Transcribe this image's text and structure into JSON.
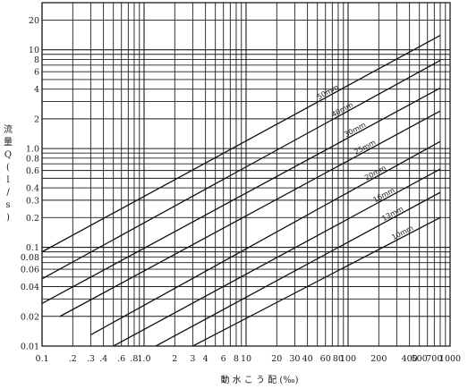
{
  "chart_data": {
    "type": "line",
    "x_scale": "log",
    "y_scale": "log",
    "xlim": [
      0.1,
      1000
    ],
    "ylim": [
      0.01,
      30
    ],
    "grid": true,
    "xlabel": "動 水 こ う 配 (‰)",
    "ylabel_chars": [
      "流",
      "量",
      "Q",
      "(",
      "l",
      "/",
      "s",
      ")"
    ],
    "x_ticks": [
      {
        "v": 0.1,
        "t": "0.1"
      },
      {
        "v": 0.2,
        "t": ".2"
      },
      {
        "v": 0.3,
        "t": ".3"
      },
      {
        "v": 0.4,
        "t": ".4"
      },
      {
        "v": 0.6,
        "t": ".6"
      },
      {
        "v": 0.8,
        "t": ".8"
      },
      {
        "v": 1,
        "t": "1.0"
      },
      {
        "v": 2,
        "t": "2"
      },
      {
        "v": 3,
        "t": "3"
      },
      {
        "v": 4,
        "t": "4"
      },
      {
        "v": 6,
        "t": "6"
      },
      {
        "v": 8,
        "t": "8"
      },
      {
        "v": 10,
        "t": "10"
      },
      {
        "v": 20,
        "t": "20"
      },
      {
        "v": 30,
        "t": "30"
      },
      {
        "v": 40,
        "t": "40"
      },
      {
        "v": 60,
        "t": "60"
      },
      {
        "v": 80,
        "t": "80"
      },
      {
        "v": 100,
        "t": "100"
      },
      {
        "v": 200,
        "t": "200"
      },
      {
        "v": 400,
        "t": "400"
      },
      {
        "v": 500,
        "t": "500"
      },
      {
        "v": 700,
        "t": "700"
      },
      {
        "v": 1000,
        "t": "1000"
      }
    ],
    "y_ticks": [
      {
        "v": 0.01,
        "t": "0.01"
      },
      {
        "v": 0.02,
        "t": "0.02"
      },
      {
        "v": 0.04,
        "t": "0.04"
      },
      {
        "v": 0.06,
        "t": "0.06"
      },
      {
        "v": 0.08,
        "t": "0.08"
      },
      {
        "v": 0.1,
        "t": "0.1"
      },
      {
        "v": 0.2,
        "t": "0.2"
      },
      {
        "v": 0.3,
        "t": "0.3"
      },
      {
        "v": 0.4,
        "t": "0.4"
      },
      {
        "v": 0.6,
        "t": "0.6"
      },
      {
        "v": 0.8,
        "t": "0.8"
      },
      {
        "v": 1,
        "t": "1.0"
      },
      {
        "v": 2,
        "t": "2"
      },
      {
        "v": 4,
        "t": "4"
      },
      {
        "v": 6,
        "t": "6"
      },
      {
        "v": 8,
        "t": "8"
      },
      {
        "v": 10,
        "t": "10"
      },
      {
        "v": 20,
        "t": "20"
      }
    ],
    "series": [
      {
        "name": "50mm",
        "points": [
          [
            0.1,
            0.09
          ],
          [
            800,
            14
          ]
        ],
        "label_at": 65
      },
      {
        "name": "40mm",
        "points": [
          [
            0.1,
            0.048
          ],
          [
            800,
            7.8
          ]
        ],
        "label_at": 90
      },
      {
        "name": "30mm",
        "points": [
          [
            0.1,
            0.027
          ],
          [
            800,
            4.1
          ]
        ],
        "label_at": 120
      },
      {
        "name": "25mm",
        "points": [
          [
            0.15,
            0.02
          ],
          [
            800,
            2.4
          ]
        ],
        "label_at": 150
      },
      {
        "name": "20mm",
        "points": [
          [
            0.3,
            0.013
          ],
          [
            800,
            1.18
          ]
        ],
        "label_at": 190
      },
      {
        "name": "16mm",
        "points": [
          [
            0.5,
            0.01
          ],
          [
            800,
            0.62
          ]
        ],
        "label_at": 230
      },
      {
        "name": "13mm",
        "points": [
          [
            1.3,
            0.01
          ],
          [
            800,
            0.36
          ]
        ],
        "label_at": 280
      },
      {
        "name": "10mm",
        "points": [
          [
            3,
            0.01
          ],
          [
            800,
            0.2
          ]
        ],
        "label_at": 350
      }
    ]
  }
}
